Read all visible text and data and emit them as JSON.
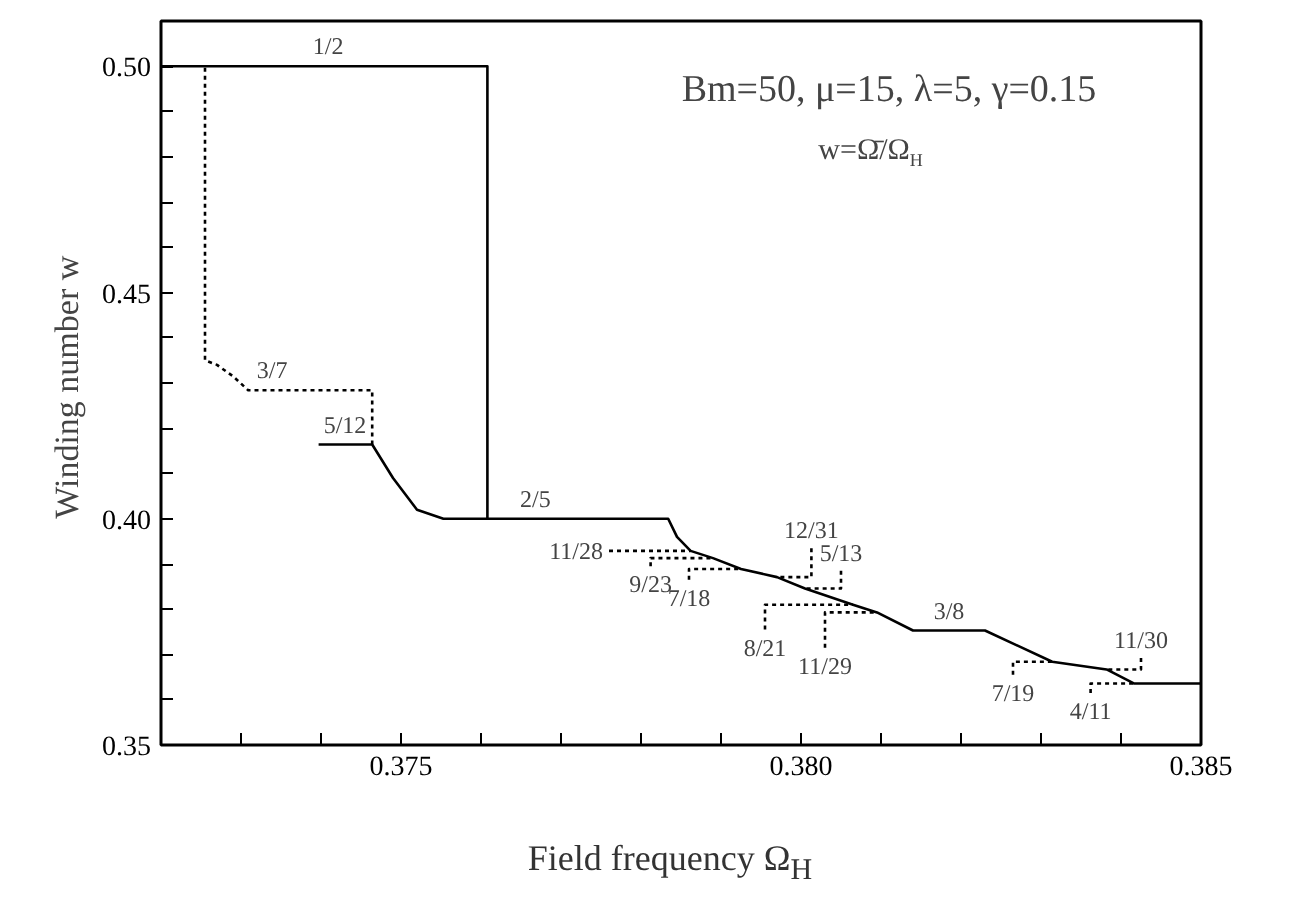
{
  "chart_data": {
    "type": "line",
    "xlabel": "Field frequency Ω$_{H}$",
    "ylabel": "Winding number  w",
    "xlim": [
      0.372,
      0.385
    ],
    "ylim": [
      0.35,
      0.51
    ],
    "xticks": [
      {
        "value": 0.372,
        "label": null
      },
      {
        "value": 0.373,
        "label": null
      },
      {
        "value": 0.374,
        "label": null
      },
      {
        "value": 0.375,
        "label": "0.375"
      },
      {
        "value": 0.376,
        "label": null
      },
      {
        "value": 0.377,
        "label": null
      },
      {
        "value": 0.378,
        "label": null
      },
      {
        "value": 0.379,
        "label": null
      },
      {
        "value": 0.38,
        "label": "0.380"
      },
      {
        "value": 0.381,
        "label": null
      },
      {
        "value": 0.382,
        "label": null
      },
      {
        "value": 0.383,
        "label": null
      },
      {
        "value": 0.384,
        "label": null
      },
      {
        "value": 0.385,
        "label": "0.385"
      }
    ],
    "yticks": [
      {
        "value": 0.35,
        "label": "0.35"
      },
      {
        "value": 0.36,
        "label": null
      },
      {
        "value": 0.37,
        "label": null
      },
      {
        "value": 0.38,
        "label": null
      },
      {
        "value": 0.39,
        "label": null
      },
      {
        "value": 0.4,
        "label": "0.40"
      },
      {
        "value": 0.41,
        "label": null
      },
      {
        "value": 0.42,
        "label": null
      },
      {
        "value": 0.43,
        "label": null
      },
      {
        "value": 0.44,
        "label": null
      },
      {
        "value": 0.45,
        "label": "0.45"
      },
      {
        "value": 0.46,
        "label": null
      },
      {
        "value": 0.47,
        "label": null
      },
      {
        "value": 0.48,
        "label": null
      },
      {
        "value": 0.49,
        "label": null
      },
      {
        "value": 0.5,
        "label": "0.50"
      }
    ],
    "grid": false,
    "series": [
      {
        "color": "#000000",
        "line_style": "solid",
        "x": [
          0.372,
          0.37608,
          0.37608
        ],
        "values": [
          0.5,
          0.5,
          0.4
        ]
      },
      {
        "color": "#000000",
        "line_style": "solid",
        "x": [
          0.37397,
          0.37464,
          0.3749,
          0.3752,
          0.37553,
          0.37834,
          0.37845,
          0.37862,
          0.3789,
          0.37925,
          0.3797,
          0.38005,
          0.38065,
          0.38095,
          0.3814,
          0.3823,
          0.38314,
          0.38382,
          0.38416,
          0.385
        ],
        "values": [
          0.4164,
          0.4164,
          0.409,
          0.402,
          0.4,
          0.4,
          0.396,
          0.3929,
          0.3913,
          0.3889,
          0.3871,
          0.3846,
          0.381,
          0.3793,
          0.3753,
          0.3753,
          0.3684,
          0.3667,
          0.3636,
          0.3636
        ]
      },
      {
        "color": "#000000",
        "line_style": "dotted",
        "x": [
          0.37464,
          0.37464,
          0.37309,
          0.3729,
          0.3727,
          0.37255,
          0.37255
        ],
        "values": [
          0.4164,
          0.4284,
          0.4284,
          0.4315,
          0.434,
          0.435,
          0.5
        ]
      },
      {
        "color": "#000000",
        "line_style": "dotted",
        "x": [
          0.3776,
          0.37862
        ],
        "values": [
          0.3929,
          0.3929
        ]
      },
      {
        "color": "#000000",
        "line_style": "dotted",
        "x": [
          0.37812,
          0.37812,
          0.3789
        ],
        "values": [
          0.3895,
          0.3913,
          0.3913
        ]
      },
      {
        "color": "#000000",
        "line_style": "dotted",
        "x": [
          0.3786,
          0.3786,
          0.37925
        ],
        "values": [
          0.3865,
          0.3889,
          0.3889
        ]
      },
      {
        "color": "#000000",
        "line_style": "dotted",
        "x": [
          0.38013,
          0.38013,
          0.3797
        ],
        "values": [
          0.3935,
          0.3871,
          0.3871
        ]
      },
      {
        "color": "#000000",
        "line_style": "dotted",
        "x": [
          0.3805,
          0.3805,
          0.38005
        ],
        "values": [
          0.3885,
          0.3846,
          0.3846
        ]
      },
      {
        "color": "#000000",
        "line_style": "dotted",
        "x": [
          0.37955,
          0.37955,
          0.38065
        ],
        "values": [
          0.3755,
          0.381,
          0.381
        ]
      },
      {
        "color": "#000000",
        "line_style": "dotted",
        "x": [
          0.3803,
          0.3803,
          0.38095
        ],
        "values": [
          0.3715,
          0.3793,
          0.3793
        ]
      },
      {
        "color": "#000000",
        "line_style": "dotted",
        "x": [
          0.38265,
          0.38265,
          0.38314
        ],
        "values": [
          0.3655,
          0.3684,
          0.3684
        ]
      },
      {
        "color": "#000000",
        "line_style": "dotted",
        "x": [
          0.38425,
          0.38425,
          0.38382
        ],
        "values": [
          0.3692,
          0.3667,
          0.3667
        ]
      },
      {
        "color": "#000000",
        "line_style": "dotted",
        "x": [
          0.38362,
          0.38362,
          0.38416
        ],
        "values": [
          0.3615,
          0.3636,
          0.3636
        ]
      }
    ],
    "annotations": [
      "Bm=50, μ=15, λ=5, γ=0.15",
      "w=Ω̄/Ω$_{H}$",
      {
        "text": "1/2",
        "x": 0.37409,
        "y": 0.5
      },
      {
        "text": "3/7",
        "x": 0.37339,
        "y": 0.4284
      },
      {
        "text": "5/12",
        "x": 0.3743,
        "y": 0.4164
      },
      {
        "text": "2/5",
        "x": 0.37668,
        "y": 0.4
      },
      {
        "text": "11/28",
        "x": 0.3776,
        "y": 0.3929
      },
      {
        "text": "9/23",
        "x": 0.37812,
        "y": 0.3895
      },
      {
        "text": "7/18",
        "x": 0.3786,
        "y": 0.3865
      },
      {
        "text": "12/31",
        "x": 0.38013,
        "y": 0.3935
      },
      {
        "text": "5/13",
        "x": 0.3805,
        "y": 0.3885
      },
      {
        "text": "8/21",
        "x": 0.37955,
        "y": 0.3755
      },
      {
        "text": "11/29",
        "x": 0.3803,
        "y": 0.3715
      },
      {
        "text": "3/8",
        "x": 0.38185,
        "y": 0.3753
      },
      {
        "text": "7/19",
        "x": 0.38265,
        "y": 0.3655
      },
      {
        "text": "11/30",
        "x": 0.38425,
        "y": 0.3692
      },
      {
        "text": "4/11",
        "x": 0.38362,
        "y": 0.3615
      }
    ]
  }
}
